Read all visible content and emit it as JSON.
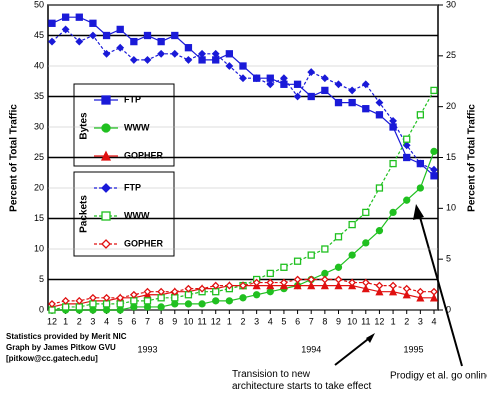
{
  "chart_data": {
    "type": "line",
    "y_label": "Percent of Total Traffic",
    "y2_label": "Percent of Total Traffic",
    "categories": [
      "12",
      "1",
      "2",
      "3",
      "4",
      "5",
      "6",
      "7",
      "8",
      "9",
      "10",
      "11",
      "12",
      "1",
      "2",
      "3",
      "4",
      "5",
      "6",
      "7",
      "8",
      "9",
      "10",
      "11",
      "12",
      "1",
      "2",
      "3",
      "4"
    ],
    "year_labels": [
      "1993",
      "1994",
      "1995"
    ],
    "ylim": [
      0,
      50
    ],
    "yticks": [
      0,
      5,
      10,
      15,
      20,
      25,
      30,
      35,
      40,
      45,
      50
    ],
    "y2lim": [
      0,
      30
    ],
    "y2ticks": [
      0,
      5,
      10,
      15,
      20,
      25,
      30
    ],
    "grid": true,
    "legend_groups": [
      "Bytes",
      "Packets"
    ],
    "series": [
      {
        "name": "FTP",
        "group": 0,
        "color": "#1a1ad8",
        "marker": "square",
        "filled": true,
        "dashed": false,
        "values": [
          47,
          48,
          48,
          47,
          45,
          46,
          44,
          45,
          44,
          45,
          43,
          41,
          41,
          42,
          40,
          38,
          38,
          37,
          37,
          35,
          36,
          34,
          34,
          33,
          32,
          30,
          25,
          24,
          22
        ]
      },
      {
        "name": "WWW",
        "group": 0,
        "color": "#20c020",
        "marker": "circle",
        "filled": true,
        "dashed": false,
        "values": [
          0,
          0,
          0,
          0,
          0,
          0,
          0.5,
          0.5,
          0.5,
          1,
          1,
          1,
          1.5,
          1.5,
          2,
          2.5,
          3,
          3.5,
          4,
          5,
          6,
          7,
          9,
          11,
          13,
          16,
          18,
          20,
          26
        ]
      },
      {
        "name": "GOPHER",
        "group": 0,
        "color": "#e01010",
        "marker": "triangle",
        "filled": true,
        "dashed": false,
        "values": [
          0.5,
          1,
          1,
          1.5,
          1.5,
          2,
          2,
          2.5,
          2.5,
          3,
          3,
          3.5,
          3.5,
          4,
          4,
          4,
          4,
          4,
          4,
          4,
          4,
          4,
          4,
          3.5,
          3,
          3,
          2.5,
          2,
          2
        ]
      },
      {
        "name": "FTP",
        "group": 1,
        "color": "#1a1ad8",
        "marker": "diamond",
        "filled": true,
        "dashed": true,
        "values": [
          44,
          46,
          44,
          45,
          42,
          43,
          41,
          41,
          42,
          42,
          41,
          42,
          42,
          40,
          38,
          38,
          37,
          38,
          35,
          39,
          38,
          37,
          36,
          37,
          34,
          31,
          27,
          24,
          23
        ]
      },
      {
        "name": "WWW",
        "group": 1,
        "color": "#20c020",
        "marker": "square",
        "filled": false,
        "dashed": true,
        "values": [
          0,
          0.5,
          0.5,
          1,
          1,
          1,
          1.5,
          1.5,
          2,
          2,
          2.5,
          3,
          3,
          3.5,
          4,
          5,
          6,
          7,
          8,
          9,
          10,
          12,
          14,
          16,
          20,
          24,
          28,
          32,
          36
        ]
      },
      {
        "name": "GOPHER",
        "group": 1,
        "color": "#e01010",
        "marker": "diamond",
        "filled": false,
        "dashed": true,
        "values": [
          1,
          1.5,
          1.5,
          2,
          2,
          2,
          2.5,
          3,
          3,
          3,
          3.5,
          3.5,
          4,
          4,
          4,
          4.5,
          4.5,
          4.5,
          5,
          5,
          5,
          5,
          4.5,
          4.5,
          4,
          4,
          3.5,
          3,
          3
        ]
      }
    ],
    "notes": [
      "Statistics provided by Merit NIC",
      "Graph by James Pitkow GVU",
      "[pitkow@cc.gatech.edu]"
    ],
    "annotations": [
      "Transision to new architecture starts to take effect",
      "Prodigy et al. go online"
    ]
  }
}
